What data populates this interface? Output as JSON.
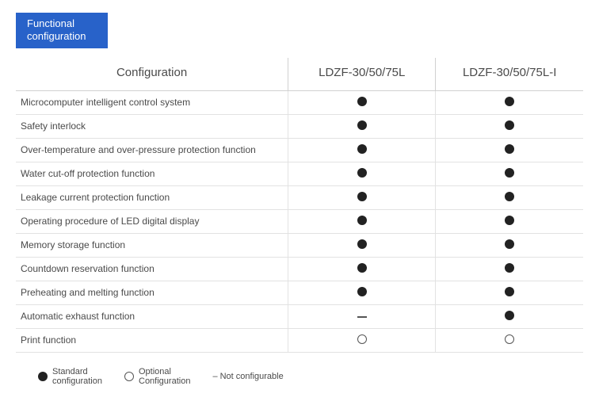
{
  "title_line1": "Functional",
  "title_line2": "configuration",
  "colors": {
    "title_bg": "#2862c9",
    "title_text": "#ffffff",
    "border": "#d0d0d0",
    "row_border": "#e2e2e2",
    "text": "#4a4a4a",
    "mark": "#222222"
  },
  "table": {
    "header": {
      "config_col": "Configuration",
      "model1": "LDZF-30/50/75L",
      "model2": "LDZF-30/50/75L-I"
    },
    "rows": [
      {
        "label": "Microcomputer intelligent control system",
        "m1": "standard",
        "m2": "standard"
      },
      {
        "label": "Safety interlock",
        "m1": "standard",
        "m2": "standard"
      },
      {
        "label": "Over-temperature and over-pressure protection function",
        "m1": "standard",
        "m2": "standard"
      },
      {
        "label": "Water cut-off protection function",
        "m1": "standard",
        "m2": "standard"
      },
      {
        "label": "Leakage current protection function",
        "m1": "standard",
        "m2": "standard"
      },
      {
        "label": "Operating procedure of LED digital display",
        "m1": "standard",
        "m2": "standard"
      },
      {
        "label": "Memory storage function",
        "m1": "standard",
        "m2": "standard"
      },
      {
        "label": "Countdown reservation function",
        "m1": "standard",
        "m2": "standard"
      },
      {
        "label": "Preheating and melting function",
        "m1": "standard",
        "m2": "standard"
      },
      {
        "label": "Automatic exhaust function",
        "m1": "none",
        "m2": "standard"
      },
      {
        "label": "Print function",
        "m1": "optional",
        "m2": "optional"
      }
    ]
  },
  "legend": {
    "standard": "Standard\nconfiguration",
    "optional": "Optional\nConfiguration",
    "none": "–  Not configurable"
  }
}
